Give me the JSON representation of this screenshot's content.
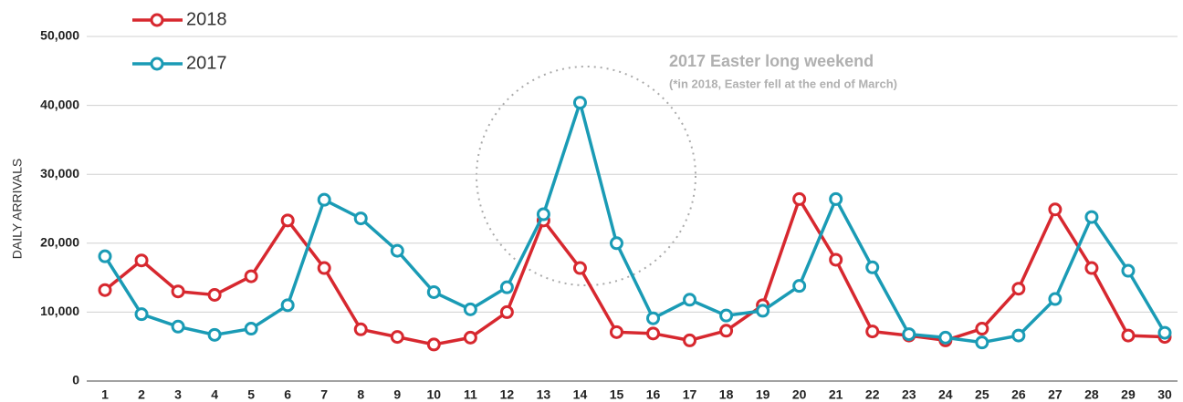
{
  "chart_data": {
    "type": "line",
    "y_label": "DAILY ARRIVALS",
    "annotation": "2017 Easter long weekend",
    "annotation_note": "(*in 2018, Easter fell at the end of March)",
    "categories": [
      "1",
      "2",
      "3",
      "4",
      "5",
      "6",
      "7",
      "8",
      "9",
      "10",
      "11",
      "12",
      "13",
      "14",
      "15",
      "16",
      "17",
      "18",
      "19",
      "20",
      "21",
      "22",
      "23",
      "24",
      "25",
      "26",
      "27",
      "28",
      "29",
      "30"
    ],
    "series": [
      {
        "name": "2018",
        "color": "#d7282f",
        "values": [
          13200,
          17500,
          13000,
          12500,
          15200,
          23300,
          16400,
          7500,
          6400,
          5300,
          6300,
          10000,
          23300,
          16400,
          7100,
          6900,
          5900,
          7300,
          11000,
          26400,
          17600,
          7200,
          6600,
          5900,
          7600,
          13400,
          24900,
          16400,
          6600,
          6400
        ]
      },
      {
        "name": "2017",
        "color": "#1a9bb5",
        "values": [
          18100,
          9700,
          7900,
          6700,
          7600,
          11000,
          26300,
          23600,
          18900,
          12900,
          10400,
          13600,
          24200,
          40400,
          20000,
          9100,
          11800,
          9500,
          10200,
          13800,
          26400,
          16500,
          6800,
          6300,
          5600,
          6600,
          11900,
          23800,
          16000,
          7000
        ]
      }
    ],
    "ylim": [
      0,
      50000
    ],
    "yticks": [
      0,
      {
        "value": 10000,
        "label": "10,000"
      },
      {
        "value": 20000,
        "label": "20,000"
      },
      {
        "value": 30000,
        "label": "30,000"
      },
      {
        "value": 40000,
        "label": "40,000"
      },
      {
        "value": 50000,
        "label": "50,000"
      }
    ],
    "grid": true
  }
}
